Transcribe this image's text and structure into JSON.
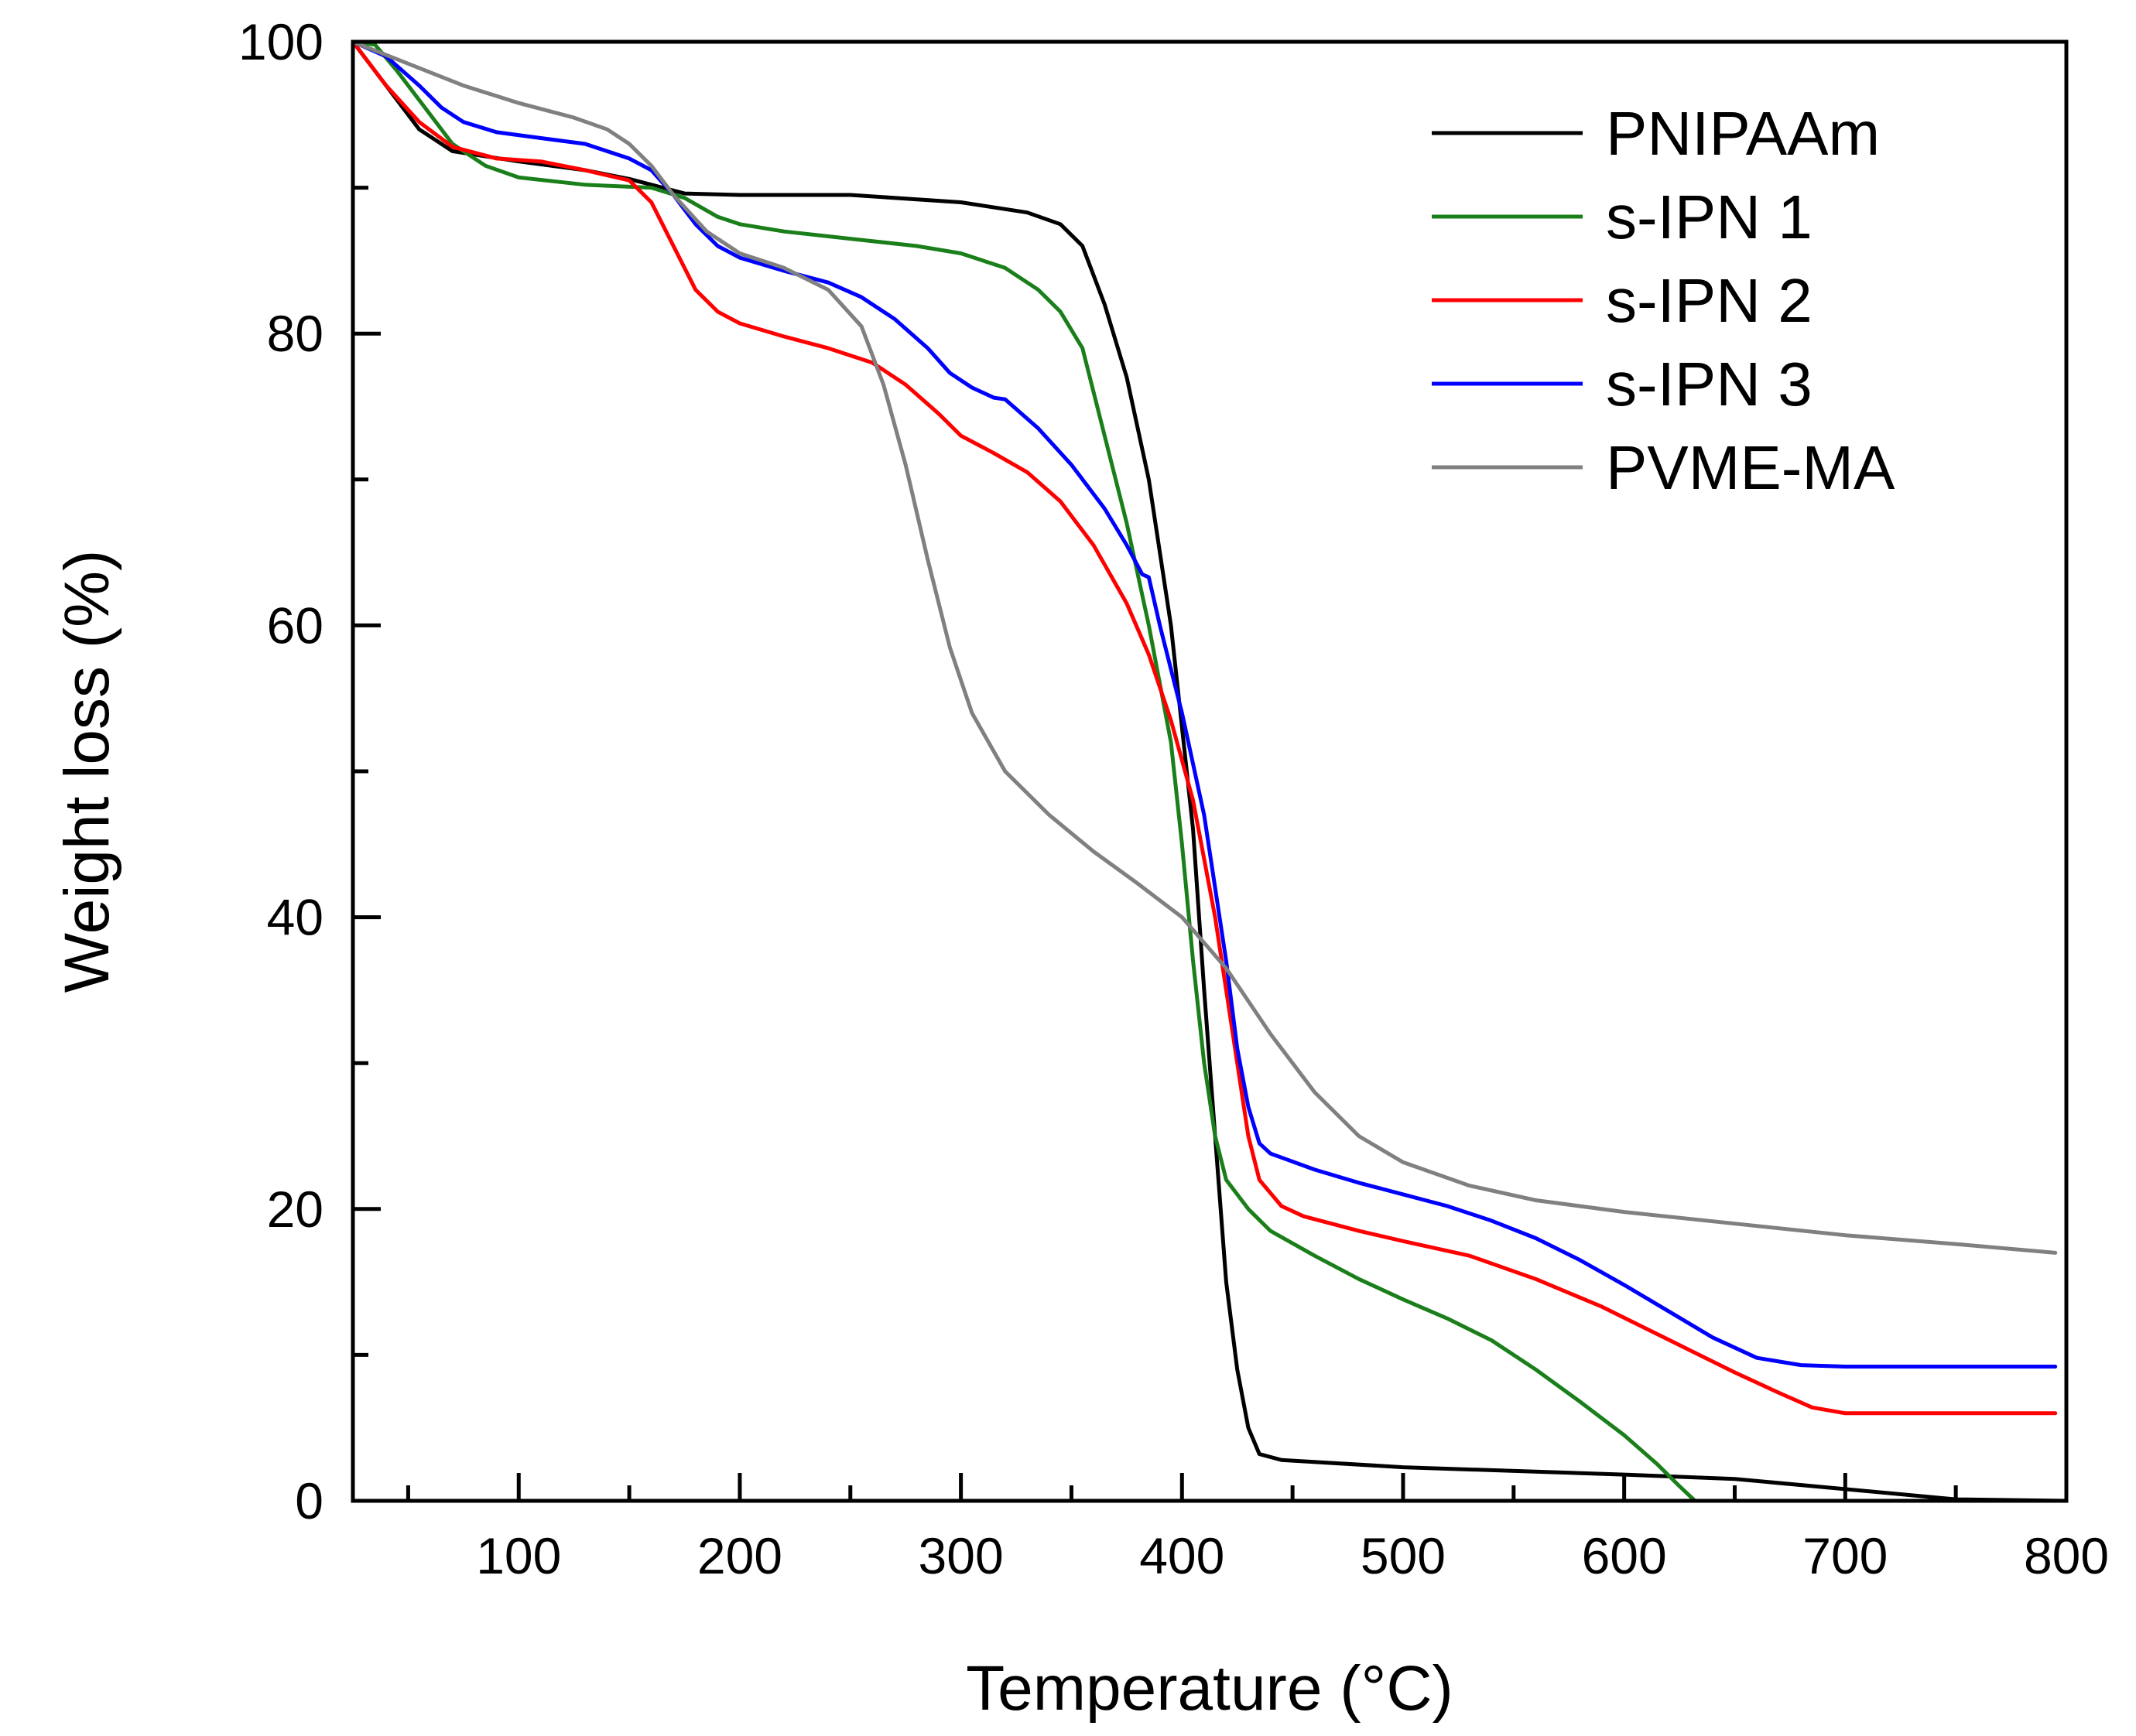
{
  "chart_data": {
    "type": "line",
    "title": "",
    "xlabel": "Temperature (°C)",
    "ylabel": "Weight loss (%)",
    "xlim": [
      25,
      800
    ],
    "ylim": [
      0,
      100
    ],
    "xticks": [
      100,
      200,
      300,
      400,
      500,
      600,
      700,
      800
    ],
    "xticks_minor": [
      50,
      150,
      250,
      350,
      450,
      550,
      650,
      750
    ],
    "yticks": [
      0,
      20,
      40,
      60,
      80,
      100
    ],
    "yticks_minor": [
      10,
      30,
      50,
      70,
      90
    ],
    "grid": false,
    "legend_position": "top-right",
    "series": [
      {
        "name": "PNIPAAm",
        "color": "#000000",
        "points": [
          [
            25,
            100
          ],
          [
            40,
            97
          ],
          [
            55,
            94
          ],
          [
            70,
            92.5
          ],
          [
            100,
            91.8
          ],
          [
            130,
            91.2
          ],
          [
            150,
            90.6
          ],
          [
            160,
            90.2
          ],
          [
            175,
            89.6
          ],
          [
            200,
            89.5
          ],
          [
            250,
            89.5
          ],
          [
            300,
            89
          ],
          [
            330,
            88.3
          ],
          [
            345,
            87.5
          ],
          [
            355,
            86
          ],
          [
            365,
            82
          ],
          [
            375,
            77
          ],
          [
            385,
            70
          ],
          [
            395,
            60
          ],
          [
            400,
            53
          ],
          [
            405,
            46
          ],
          [
            410,
            35
          ],
          [
            415,
            25
          ],
          [
            420,
            15
          ],
          [
            425,
            9
          ],
          [
            430,
            5
          ],
          [
            435,
            3.2
          ],
          [
            445,
            2.8
          ],
          [
            500,
            2.3
          ],
          [
            600,
            1.8
          ],
          [
            650,
            1.5
          ],
          [
            700,
            0.8
          ],
          [
            750,
            0.1
          ],
          [
            800,
            0
          ]
        ]
      },
      {
        "name": "s-IPN 1",
        "color": "#1a7f1a",
        "points": [
          [
            25,
            100
          ],
          [
            35,
            99.8
          ],
          [
            45,
            98
          ],
          [
            55,
            96
          ],
          [
            70,
            93
          ],
          [
            85,
            91.5
          ],
          [
            100,
            90.7
          ],
          [
            130,
            90.2
          ],
          [
            160,
            90
          ],
          [
            175,
            89.3
          ],
          [
            190,
            88
          ],
          [
            200,
            87.5
          ],
          [
            220,
            87
          ],
          [
            250,
            86.5
          ],
          [
            280,
            86
          ],
          [
            300,
            85.5
          ],
          [
            320,
            84.5
          ],
          [
            335,
            83
          ],
          [
            345,
            81.5
          ],
          [
            355,
            79
          ],
          [
            365,
            73
          ],
          [
            375,
            67
          ],
          [
            385,
            60
          ],
          [
            395,
            52
          ],
          [
            400,
            45
          ],
          [
            405,
            37
          ],
          [
            410,
            30
          ],
          [
            415,
            25
          ],
          [
            420,
            22
          ],
          [
            430,
            20
          ],
          [
            440,
            18.5
          ],
          [
            460,
            16.8
          ],
          [
            480,
            15.2
          ],
          [
            500,
            13.8
          ],
          [
            520,
            12.5
          ],
          [
            540,
            11
          ],
          [
            560,
            9
          ],
          [
            580,
            6.8
          ],
          [
            600,
            4.5
          ],
          [
            615,
            2.5
          ],
          [
            625,
            1
          ],
          [
            632,
            0
          ]
        ]
      },
      {
        "name": "s-IPN 2",
        "color": "#ff0000",
        "points": [
          [
            25,
            100
          ],
          [
            40,
            97
          ],
          [
            55,
            94.5
          ],
          [
            70,
            92.8
          ],
          [
            90,
            92
          ],
          [
            110,
            91.8
          ],
          [
            130,
            91.2
          ],
          [
            150,
            90.5
          ],
          [
            160,
            89
          ],
          [
            170,
            86
          ],
          [
            180,
            83
          ],
          [
            190,
            81.5
          ],
          [
            200,
            80.7
          ],
          [
            220,
            79.8
          ],
          [
            240,
            79
          ],
          [
            260,
            78
          ],
          [
            275,
            76.5
          ],
          [
            290,
            74.5
          ],
          [
            300,
            73
          ],
          [
            315,
            71.8
          ],
          [
            330,
            70.5
          ],
          [
            345,
            68.5
          ],
          [
            360,
            65.5
          ],
          [
            375,
            61.5
          ],
          [
            385,
            58
          ],
          [
            395,
            53.5
          ],
          [
            405,
            48
          ],
          [
            415,
            40
          ],
          [
            420,
            35
          ],
          [
            425,
            30
          ],
          [
            430,
            25
          ],
          [
            435,
            22
          ],
          [
            445,
            20.2
          ],
          [
            455,
            19.5
          ],
          [
            480,
            18.5
          ],
          [
            500,
            17.8
          ],
          [
            530,
            16.8
          ],
          [
            560,
            15.2
          ],
          [
            590,
            13.3
          ],
          [
            610,
            11.8
          ],
          [
            630,
            10.3
          ],
          [
            650,
            8.8
          ],
          [
            670,
            7.4
          ],
          [
            685,
            6.4
          ],
          [
            700,
            6
          ],
          [
            750,
            6
          ],
          [
            795,
            6
          ]
        ]
      },
      {
        "name": "s-IPN 3",
        "color": "#0000ff",
        "points": [
          [
            25,
            100
          ],
          [
            40,
            99
          ],
          [
            55,
            97
          ],
          [
            65,
            95.5
          ],
          [
            75,
            94.5
          ],
          [
            90,
            93.8
          ],
          [
            110,
            93.4
          ],
          [
            130,
            93
          ],
          [
            150,
            92
          ],
          [
            160,
            91.2
          ],
          [
            170,
            89.5
          ],
          [
            180,
            87.5
          ],
          [
            190,
            86
          ],
          [
            200,
            85.2
          ],
          [
            220,
            84.3
          ],
          [
            240,
            83.5
          ],
          [
            255,
            82.5
          ],
          [
            270,
            81
          ],
          [
            285,
            79
          ],
          [
            295,
            77.3
          ],
          [
            305,
            76.3
          ],
          [
            315,
            75.6
          ],
          [
            320,
            75.5
          ],
          [
            335,
            73.5
          ],
          [
            350,
            71
          ],
          [
            365,
            68
          ],
          [
            375,
            65.5
          ],
          [
            382,
            63.5
          ],
          [
            385,
            63.3
          ],
          [
            390,
            60
          ],
          [
            400,
            54
          ],
          [
            410,
            47
          ],
          [
            420,
            37
          ],
          [
            425,
            31
          ],
          [
            430,
            27
          ],
          [
            435,
            24.5
          ],
          [
            440,
            23.8
          ],
          [
            460,
            22.7
          ],
          [
            480,
            21.8
          ],
          [
            500,
            21
          ],
          [
            520,
            20.2
          ],
          [
            540,
            19.2
          ],
          [
            560,
            18
          ],
          [
            580,
            16.5
          ],
          [
            600,
            14.8
          ],
          [
            620,
            13
          ],
          [
            640,
            11.2
          ],
          [
            660,
            9.8
          ],
          [
            680,
            9.3
          ],
          [
            700,
            9.2
          ],
          [
            750,
            9.2
          ],
          [
            795,
            9.2
          ]
        ]
      },
      {
        "name": "PVME-MA",
        "color": "#808080",
        "points": [
          [
            25,
            100
          ],
          [
            50,
            98.5
          ],
          [
            75,
            97
          ],
          [
            100,
            95.8
          ],
          [
            125,
            94.8
          ],
          [
            140,
            94
          ],
          [
            150,
            93
          ],
          [
            160,
            91.5
          ],
          [
            170,
            89.5
          ],
          [
            185,
            87
          ],
          [
            200,
            85.5
          ],
          [
            220,
            84.5
          ],
          [
            240,
            83
          ],
          [
            255,
            80.5
          ],
          [
            265,
            76.5
          ],
          [
            275,
            71
          ],
          [
            285,
            64.5
          ],
          [
            295,
            58.5
          ],
          [
            305,
            54
          ],
          [
            320,
            50
          ],
          [
            340,
            47
          ],
          [
            360,
            44.5
          ],
          [
            380,
            42.3
          ],
          [
            400,
            40
          ],
          [
            420,
            36.5
          ],
          [
            440,
            32
          ],
          [
            460,
            28
          ],
          [
            480,
            25
          ],
          [
            500,
            23.2
          ],
          [
            530,
            21.6
          ],
          [
            560,
            20.6
          ],
          [
            600,
            19.8
          ],
          [
            650,
            19
          ],
          [
            700,
            18.2
          ],
          [
            750,
            17.6
          ],
          [
            795,
            17
          ]
        ]
      }
    ]
  }
}
